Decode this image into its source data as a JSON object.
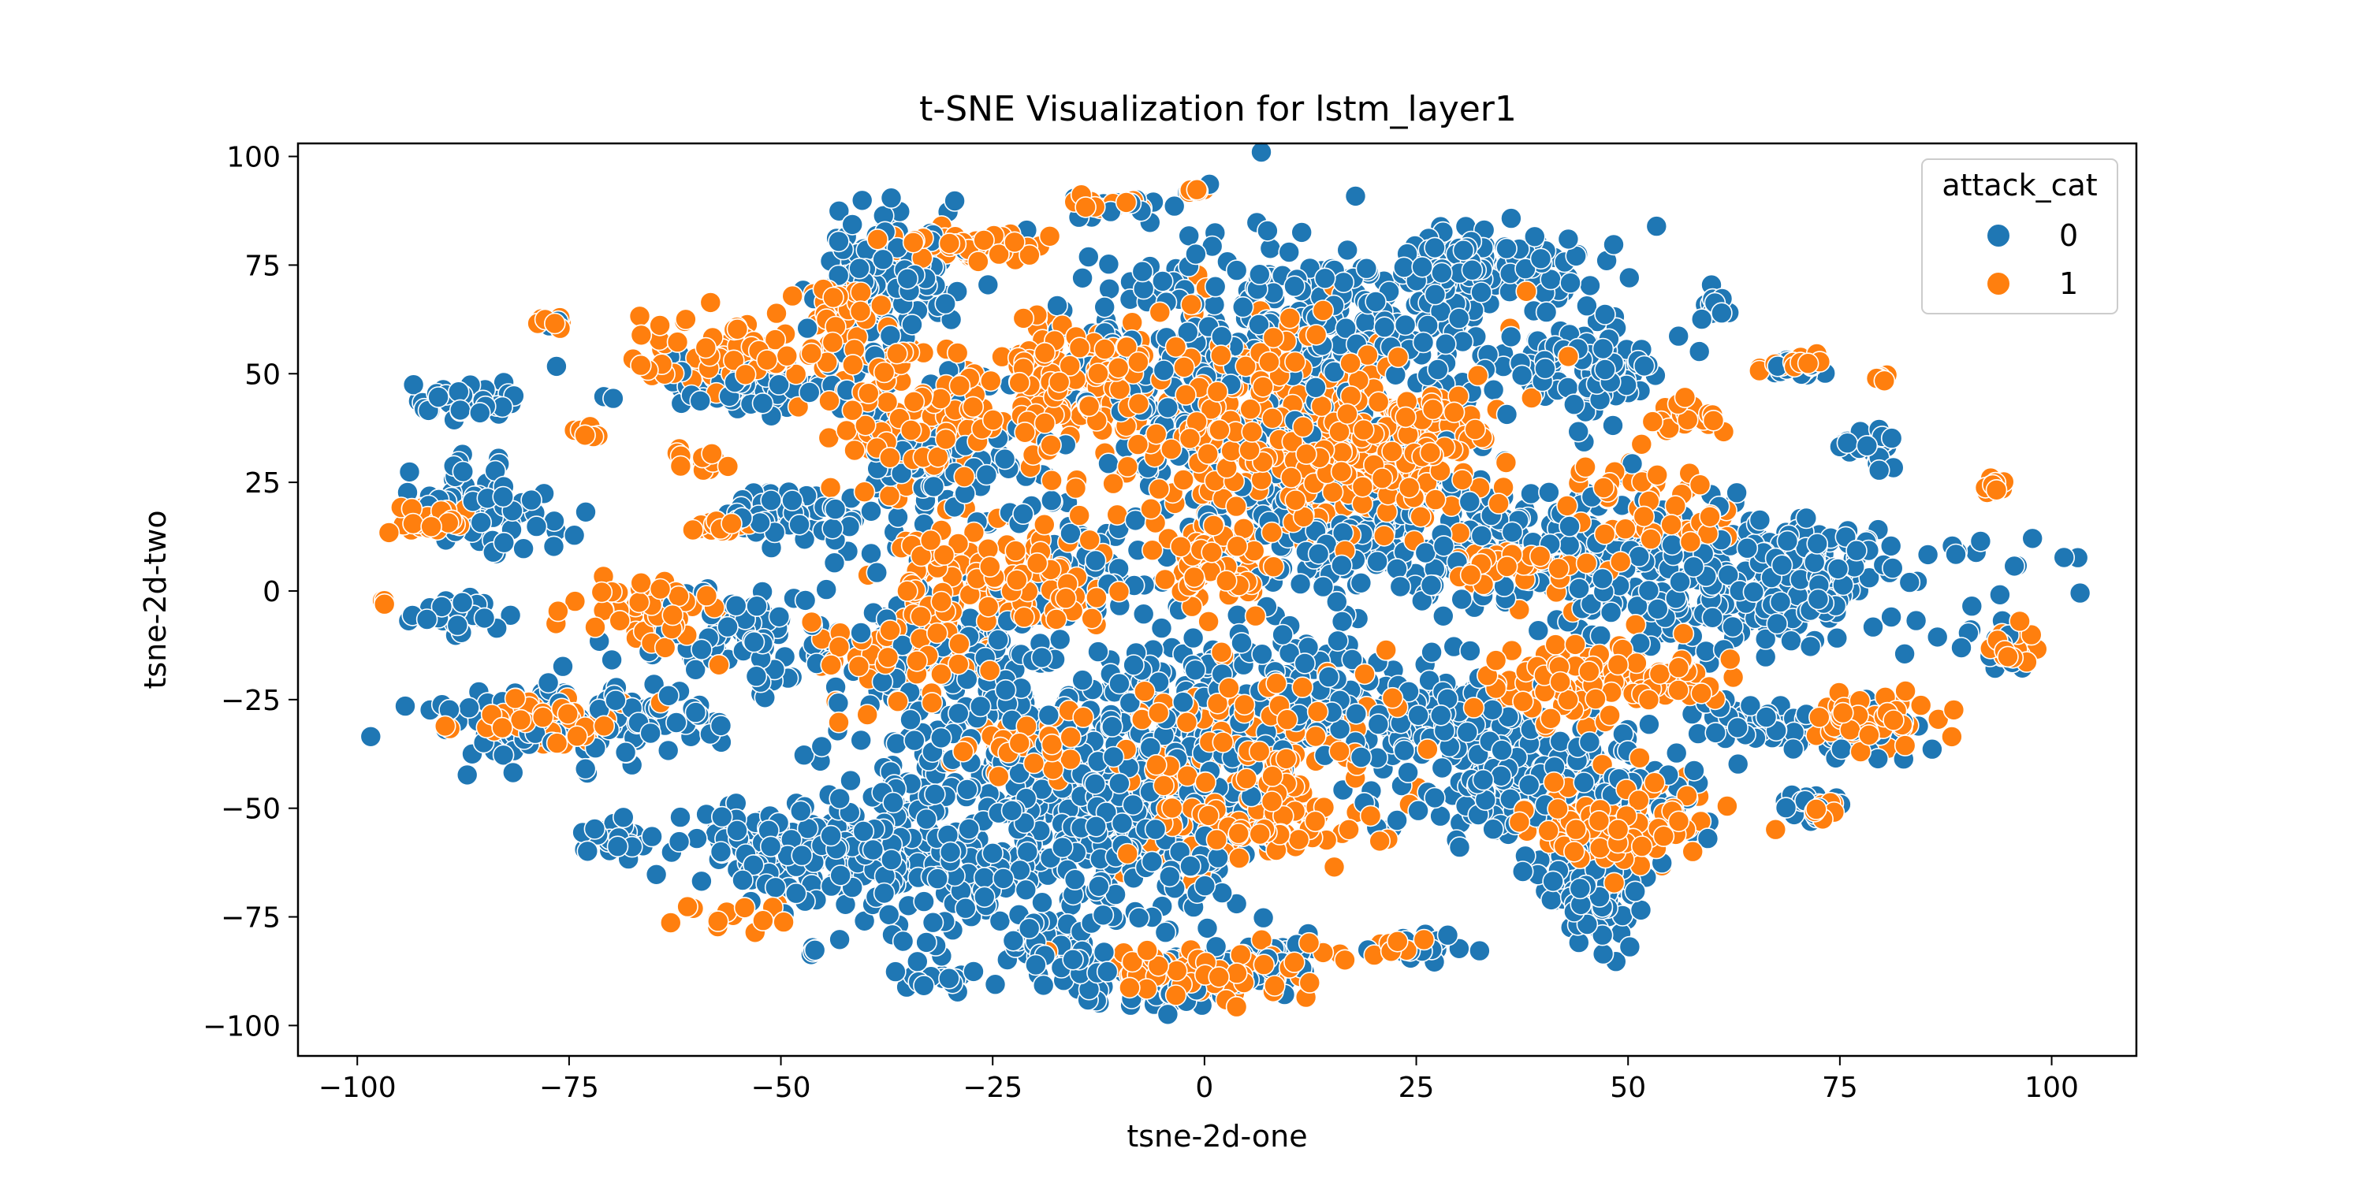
{
  "figure": {
    "title": "t-SNE Visualization for lstm_layer1",
    "xlabel": "tsne-2d-one",
    "ylabel": "tsne-2d-two"
  },
  "legend": {
    "title": "attack_cat",
    "items": [
      {
        "label": "0",
        "color": "#1f77b4"
      },
      {
        "label": "1",
        "color": "#ff7f0e"
      }
    ],
    "placement": "top-right"
  },
  "chart_data": {
    "type": "scatter",
    "title": "t-SNE Visualization for lstm_layer1",
    "xlabel": "tsne-2d-one",
    "ylabel": "tsne-2d-two",
    "xlim": [
      -107,
      110
    ],
    "ylim": [
      -107,
      103
    ],
    "xticks": [
      -100,
      -75,
      -50,
      -25,
      0,
      25,
      50,
      75,
      100
    ],
    "yticks": [
      -100,
      -75,
      -50,
      -25,
      0,
      25,
      50,
      75,
      100
    ],
    "xtick_labels": [
      "−100",
      "−75",
      "−50",
      "−25",
      "0",
      "25",
      "50",
      "75",
      "100"
    ],
    "ytick_labels": [
      "−100",
      "−75",
      "−50",
      "−25",
      "0",
      "25",
      "50",
      "75",
      "100"
    ],
    "grid": false,
    "legend_placement": "top-right",
    "series": [
      {
        "name": "0",
        "color": "#1f77b4",
        "clusters": [
          {
            "cx": -38,
            "cy": 72,
            "sx": 4,
            "sy": 8,
            "n": 140
          },
          {
            "cx": -52,
            "cy": 47,
            "sx": 7,
            "sy": 3,
            "n": 90
          },
          {
            "cx": -87,
            "cy": 44,
            "sx": 3,
            "sy": 2,
            "n": 35
          },
          {
            "cx": -85,
            "cy": 20,
            "sx": 4,
            "sy": 5,
            "n": 70
          },
          {
            "cx": -88,
            "cy": -5,
            "sx": 3,
            "sy": 2,
            "n": 30
          },
          {
            "cx": -50,
            "cy": 18,
            "sx": 5,
            "sy": 3,
            "n": 60
          },
          {
            "cx": -55,
            "cy": -10,
            "sx": 6,
            "sy": 6,
            "n": 80
          },
          {
            "cx": -30,
            "cy": 30,
            "sx": 6,
            "sy": 8,
            "n": 100
          },
          {
            "cx": -77,
            "cy": -30,
            "sx": 8,
            "sy": 5,
            "n": 90
          },
          {
            "cx": -65,
            "cy": -30,
            "sx": 4,
            "sy": 3,
            "n": 40
          },
          {
            "cx": -70,
            "cy": -57,
            "sx": 2,
            "sy": 2,
            "n": 25
          },
          {
            "cx": -48,
            "cy": -60,
            "sx": 7,
            "sy": 6,
            "n": 130
          },
          {
            "cx": -30,
            "cy": -20,
            "sx": 9,
            "sy": 20,
            "n": 260
          },
          {
            "cx": -32,
            "cy": -60,
            "sx": 9,
            "sy": 10,
            "n": 180
          },
          {
            "cx": -15,
            "cy": 5,
            "sx": 4,
            "sy": 6,
            "n": 50
          },
          {
            "cx": -17,
            "cy": -45,
            "sx": 5,
            "sy": 12,
            "n": 110
          },
          {
            "cx": -7,
            "cy": -60,
            "sx": 6,
            "sy": 8,
            "n": 130
          },
          {
            "cx": -7,
            "cy": -35,
            "sx": 8,
            "sy": 12,
            "n": 170
          },
          {
            "cx": -5,
            "cy": -90,
            "sx": 6,
            "sy": 3,
            "n": 80
          },
          {
            "cx": 8,
            "cy": -85,
            "sx": 4,
            "sy": 3,
            "n": 45
          },
          {
            "cx": -18,
            "cy": -82,
            "sx": 3,
            "sy": 3,
            "n": 40
          },
          {
            "cx": 3,
            "cy": 50,
            "sx": 12,
            "sy": 15,
            "n": 320
          },
          {
            "cx": 20,
            "cy": 60,
            "sx": 10,
            "sy": 10,
            "n": 170
          },
          {
            "cx": 33,
            "cy": 75,
            "sx": 7,
            "sy": 4,
            "n": 120
          },
          {
            "cx": 45,
            "cy": 52,
            "sx": 5,
            "sy": 6,
            "n": 100
          },
          {
            "cx": 15,
            "cy": 15,
            "sx": 10,
            "sy": 8,
            "n": 180
          },
          {
            "cx": 10,
            "cy": -25,
            "sx": 9,
            "sy": 10,
            "n": 170
          },
          {
            "cx": 40,
            "cy": 10,
            "sx": 10,
            "sy": 8,
            "n": 170
          },
          {
            "cx": 60,
            "cy": 0,
            "sx": 12,
            "sy": 8,
            "n": 170
          },
          {
            "cx": 70,
            "cy": 5,
            "sx": 6,
            "sy": 6,
            "n": 90
          },
          {
            "cx": 40,
            "cy": -45,
            "sx": 8,
            "sy": 7,
            "n": 220
          },
          {
            "cx": 46,
            "cy": -68,
            "sx": 3,
            "sy": 6,
            "n": 90
          },
          {
            "cx": 30,
            "cy": -30,
            "sx": 6,
            "sy": 6,
            "n": 80
          },
          {
            "cx": 65,
            "cy": -30,
            "sx": 4,
            "sy": 3,
            "n": 40
          },
          {
            "cx": 78,
            "cy": -32,
            "sx": 4,
            "sy": 3,
            "n": 45
          },
          {
            "cx": 72,
            "cy": -49,
            "sx": 2,
            "sy": 2,
            "n": 20
          },
          {
            "cx": 70,
            "cy": 52,
            "sx": 2,
            "sy": 1,
            "n": 20
          },
          {
            "cx": 79,
            "cy": 33,
            "sx": 2,
            "sy": 2,
            "n": 20
          },
          {
            "cx": 60,
            "cy": 66,
            "sx": 1,
            "sy": 2,
            "n": 12
          },
          {
            "cx": 94,
            "cy": -12,
            "sx": 2,
            "sy": 3,
            "n": 20
          },
          {
            "cx": 93,
            "cy": 8,
            "sx": 5,
            "sy": 2,
            "n": 10
          },
          {
            "cx": -10,
            "cy": 89,
            "sx": 3,
            "sy": 1,
            "n": 15
          },
          {
            "cx": -32,
            "cy": -90,
            "sx": 3,
            "sy": 1,
            "n": 20
          },
          {
            "cx": 25,
            "cy": -82,
            "sx": 3,
            "sy": 2,
            "n": 20
          },
          {
            "cx": -46,
            "cy": -83,
            "sx": 0.6,
            "sy": 0.6,
            "n": 5
          },
          {
            "cx": -77,
            "cy": 62,
            "sx": 0.6,
            "sy": 0.6,
            "n": 4
          }
        ]
      },
      {
        "name": "1",
        "color": "#ff7f0e",
        "clusters": [
          {
            "cx": -28,
            "cy": 79,
            "sx": 4,
            "sy": 2,
            "n": 50
          },
          {
            "cx": -57,
            "cy": 55,
            "sx": 5,
            "sy": 4,
            "n": 70
          },
          {
            "cx": -43,
            "cy": 62,
            "sx": 3,
            "sy": 5,
            "n": 40
          },
          {
            "cx": -77,
            "cy": 62,
            "sx": 1,
            "sy": 1,
            "n": 12
          },
          {
            "cx": -73,
            "cy": 37,
            "sx": 1,
            "sy": 1,
            "n": 12
          },
          {
            "cx": -91,
            "cy": 16,
            "sx": 3,
            "sy": 2,
            "n": 30
          },
          {
            "cx": -97,
            "cy": -2,
            "sx": 0.5,
            "sy": 0.5,
            "n": 3
          },
          {
            "cx": -65,
            "cy": -5,
            "sx": 4,
            "sy": 4,
            "n": 50
          },
          {
            "cx": -78,
            "cy": -30,
            "sx": 5,
            "sy": 3,
            "n": 50
          },
          {
            "cx": -35,
            "cy": 40,
            "sx": 7,
            "sy": 8,
            "n": 110
          },
          {
            "cx": -18,
            "cy": 50,
            "sx": 6,
            "sy": 6,
            "n": 90
          },
          {
            "cx": -28,
            "cy": 5,
            "sx": 6,
            "sy": 6,
            "n": 90
          },
          {
            "cx": -18,
            "cy": 0,
            "sx": 4,
            "sy": 4,
            "n": 40
          },
          {
            "cx": -35,
            "cy": -15,
            "sx": 5,
            "sy": 6,
            "n": 60
          },
          {
            "cx": -22,
            "cy": -35,
            "sx": 4,
            "sy": 5,
            "n": 40
          },
          {
            "cx": 5,
            "cy": 40,
            "sx": 12,
            "sy": 15,
            "n": 250
          },
          {
            "cx": 18,
            "cy": 28,
            "sx": 8,
            "sy": 8,
            "n": 150
          },
          {
            "cx": 0,
            "cy": 5,
            "sx": 3,
            "sy": 5,
            "n": 60
          },
          {
            "cx": 5,
            "cy": -40,
            "sx": 8,
            "sy": 12,
            "n": 150
          },
          {
            "cx": 8,
            "cy": -55,
            "sx": 4,
            "sy": 4,
            "n": 50
          },
          {
            "cx": 0,
            "cy": -88,
            "sx": 6,
            "sy": 3,
            "n": 80
          },
          {
            "cx": -12,
            "cy": 89,
            "sx": 2,
            "sy": 1,
            "n": 12
          },
          {
            "cx": -1,
            "cy": 92,
            "sx": 0.5,
            "sy": 0.4,
            "n": 5
          },
          {
            "cx": 52,
            "cy": 20,
            "sx": 6,
            "sy": 6,
            "n": 50
          },
          {
            "cx": 45,
            "cy": -20,
            "sx": 6,
            "sy": 6,
            "n": 80
          },
          {
            "cx": 55,
            "cy": -20,
            "sx": 3,
            "sy": 3,
            "n": 30
          },
          {
            "cx": 48,
            "cy": -55,
            "sx": 6,
            "sy": 5,
            "n": 120
          },
          {
            "cx": 57,
            "cy": 41,
            "sx": 2,
            "sy": 2,
            "n": 30
          },
          {
            "cx": 70,
            "cy": 52,
            "sx": 2,
            "sy": 1,
            "n": 15
          },
          {
            "cx": 78,
            "cy": -30,
            "sx": 4,
            "sy": 3,
            "n": 50
          },
          {
            "cx": 73,
            "cy": -50,
            "sx": 1,
            "sy": 1,
            "n": 12
          },
          {
            "cx": 80,
            "cy": 49,
            "sx": 0.5,
            "sy": 0.5,
            "n": 5
          },
          {
            "cx": 93,
            "cy": 24,
            "sx": 1,
            "sy": 1,
            "n": 12
          },
          {
            "cx": 95,
            "cy": -12,
            "sx": 2,
            "sy": 3,
            "n": 15
          },
          {
            "cx": 27,
            "cy": 40,
            "sx": 3,
            "sy": 3,
            "n": 30
          },
          {
            "cx": 22,
            "cy": -82,
            "sx": 2,
            "sy": 1,
            "n": 10
          },
          {
            "cx": -55,
            "cy": -75,
            "sx": 3,
            "sy": 2,
            "n": 15
          },
          {
            "cx": -60,
            "cy": 30,
            "sx": 1.5,
            "sy": 1.5,
            "n": 12
          },
          {
            "cx": -58,
            "cy": 15,
            "sx": 2,
            "sy": 1,
            "n": 15
          },
          {
            "cx": 35,
            "cy": 5,
            "sx": 4,
            "sy": 3,
            "n": 40
          }
        ]
      }
    ]
  }
}
